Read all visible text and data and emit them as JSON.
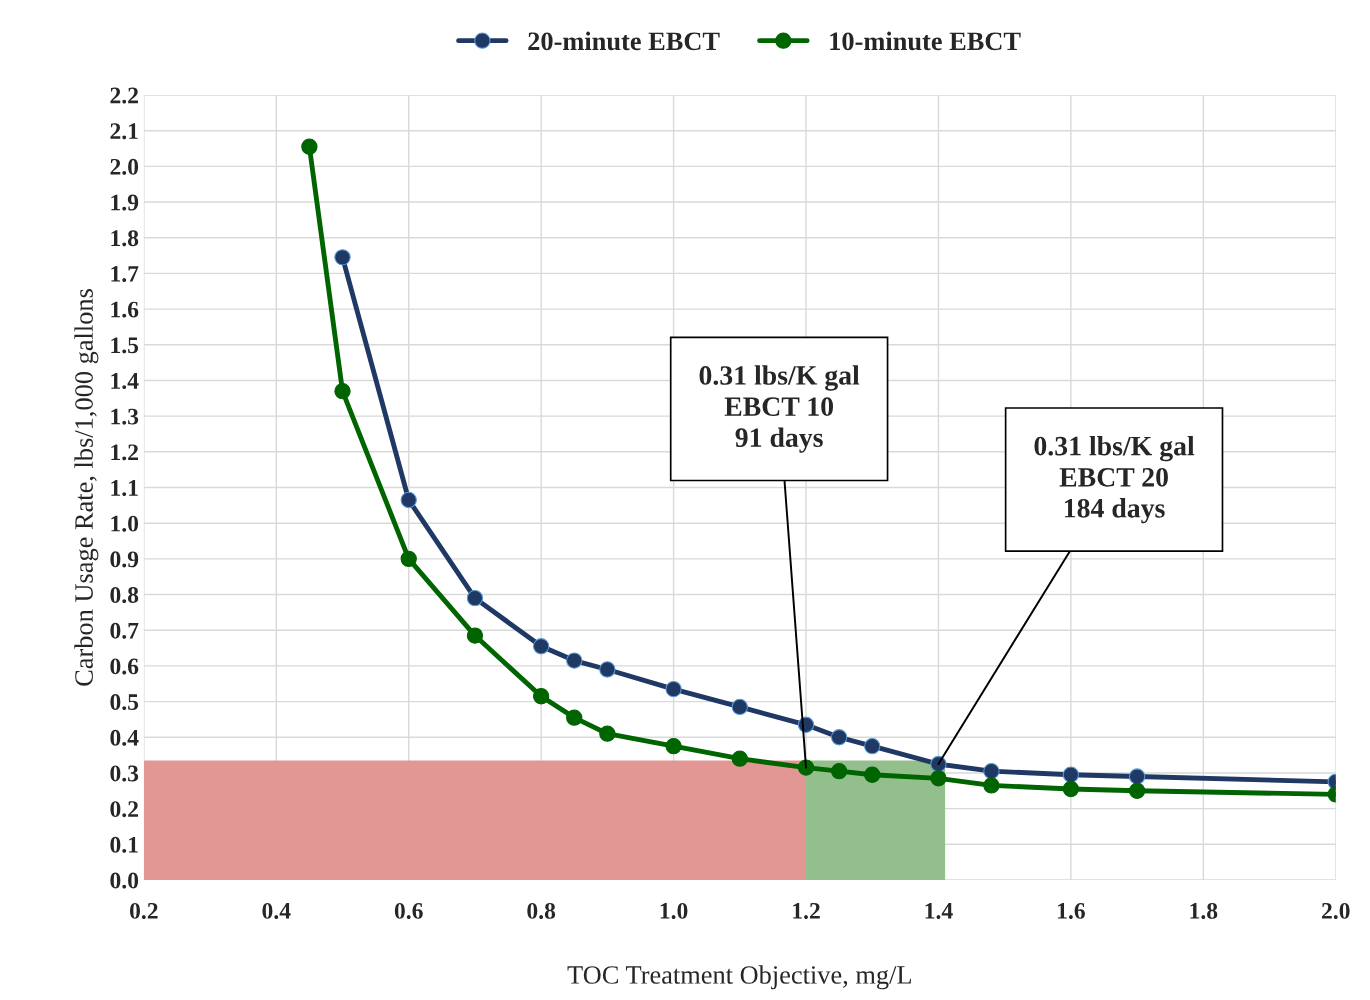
{
  "chart_data": {
    "type": "line",
    "xlabel": "TOC Treatment Objective, mg/L",
    "ylabel": "Carbon Usage Rate, lbs/1,000 gallons",
    "xlim": [
      0.2,
      2.0
    ],
    "xticks": [
      {
        "value": 0.2,
        "label": "0.2"
      },
      {
        "value": 0.4,
        "label": "0.4"
      },
      {
        "value": 0.6,
        "label": "0.6"
      },
      {
        "value": 0.8,
        "label": "0.8"
      },
      {
        "value": 1.0,
        "label": "1.0"
      },
      {
        "value": 1.2,
        "label": "1.2"
      },
      {
        "value": 1.4,
        "label": "1.4"
      },
      {
        "value": 1.6,
        "label": "1.6"
      },
      {
        "value": 1.8,
        "label": "1.8"
      },
      {
        "value": 2.0,
        "label": "2.0"
      }
    ],
    "ylim": [
      0,
      2.2
    ],
    "yticks": [
      {
        "value": 0,
        "label": "0.0"
      },
      {
        "value": 0.1,
        "label": "0.1"
      },
      {
        "value": 0.2,
        "label": "0.2"
      },
      {
        "value": 0.3,
        "label": "0.3"
      },
      {
        "value": 0.4,
        "label": "0.4"
      },
      {
        "value": 0.5,
        "label": "0.5"
      },
      {
        "value": 0.6,
        "label": "0.6"
      },
      {
        "value": 0.7,
        "label": "0.7"
      },
      {
        "value": 0.8,
        "label": "0.8"
      },
      {
        "value": 0.9,
        "label": "0.9"
      },
      {
        "value": 1.0,
        "label": "1.0"
      },
      {
        "value": 1.1,
        "label": "1.1"
      },
      {
        "value": 1.2,
        "label": "1.2"
      },
      {
        "value": 1.3,
        "label": "1.3"
      },
      {
        "value": 1.4,
        "label": "1.4"
      },
      {
        "value": 1.5,
        "label": "1.5"
      },
      {
        "value": 1.6,
        "label": "1.6"
      },
      {
        "value": 1.7,
        "label": "1.7"
      },
      {
        "value": 1.8,
        "label": "1.8"
      },
      {
        "value": 1.9,
        "label": "1.9"
      },
      {
        "value": 2.0,
        "label": "2.0"
      },
      {
        "value": 2.1,
        "label": "2.1"
      },
      {
        "value": 2.2,
        "label": "2.2"
      }
    ],
    "grid": true,
    "legend": "top",
    "marker": "circle",
    "line_style": "solid",
    "series": [
      {
        "name": "20-minute EBCT",
        "color": "#1f3864",
        "x": [
          0.5,
          0.6,
          0.7,
          0.8,
          0.85,
          0.9,
          1.0,
          1.1,
          1.2,
          1.25,
          1.3,
          1.4,
          1.48,
          1.6,
          1.7,
          2.0
        ],
        "values": [
          1.745,
          1.065,
          0.79,
          0.655,
          0.615,
          0.59,
          0.535,
          0.485,
          0.435,
          0.4,
          0.375,
          0.325,
          0.305,
          0.295,
          0.29,
          0.275
        ]
      },
      {
        "name": "10-minute EBCT",
        "color": "#006400",
        "x": [
          0.45,
          0.5,
          0.6,
          0.7,
          0.8,
          0.85,
          0.9,
          1.0,
          1.1,
          1.2,
          1.25,
          1.3,
          1.4,
          1.48,
          1.6,
          1.7,
          2.0
        ],
        "values": [
          2.055,
          1.37,
          0.9,
          0.685,
          0.515,
          0.455,
          0.41,
          0.375,
          0.34,
          0.315,
          0.305,
          0.295,
          0.285,
          0.265,
          0.255,
          0.25,
          0.24
        ]
      },
      {
        "type": "area",
        "marker": "none",
        "color": "#e39795",
        "x": [
          0.2,
          1.2
        ],
        "values": [
          0.335,
          0.335
        ]
      },
      {
        "type": "area",
        "marker": "none",
        "color": "#93bf8d",
        "x": [
          1.2,
          1.41
        ],
        "values": [
          0.335,
          0.335
        ]
      }
    ],
    "annotations": [
      {
        "text": "0.31 lbs/K gal\nEBCT 10\n91 days",
        "x": 1.2,
        "y": 0.315
      },
      {
        "text": "0.31 lbs/K gal\nEBCT 20\n184 days",
        "x": 1.4,
        "y": 0.325
      }
    ]
  }
}
